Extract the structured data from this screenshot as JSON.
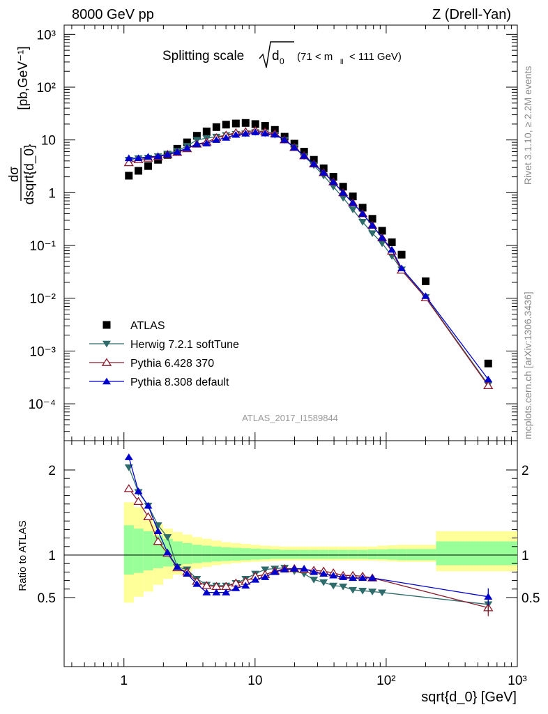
{
  "header": {
    "energy_label": "8000 GeV pp",
    "process_label": "Z (Drell-Yan)",
    "title_main": "Splitting scale",
    "title_sub": "0",
    "title_range": "(71 < m",
    "title_range_sub": "ll",
    "title_range_end": "< 111 GeV)",
    "side_rivet": "Rivet 3.1.10, ≥ 2.2M events",
    "side_mcplots": "mcplots.cern.ch [arXiv:1306.3436]",
    "analysis_id": "ATLAS_2017_I1589844"
  },
  "chart_data": [
    {
      "type": "scatter",
      "panel": "main",
      "ylabel": "dσ/dsqrt{d_0} [pb,GeV⁻¹]",
      "xscale": "log",
      "yscale": "log",
      "xlim": [
        0.35,
        1000
      ],
      "ylim": [
        2e-05,
        1500
      ],
      "x_ticks": [
        "1",
        "10",
        "10²",
        "10³"
      ],
      "y_ticks": [
        "10⁻⁴",
        "10⁻³",
        "10⁻²",
        "10⁻¹",
        "1",
        "10",
        "10²",
        "10³"
      ],
      "legend_position": "lower-left",
      "series": [
        {
          "name": "ATLAS",
          "color": "#000000",
          "marker": "square",
          "x": [
            1.09,
            1.29,
            1.53,
            1.82,
            2.15,
            2.55,
            3.03,
            3.6,
            4.27,
            5.07,
            6.01,
            7.14,
            8.47,
            10.05,
            11.93,
            14.16,
            16.8,
            19.94,
            23.66,
            28.08,
            33.33,
            39.55,
            46.94,
            55.7,
            66.11,
            78.45,
            93.1,
            110.5,
            131.1,
            200,
            600
          ],
          "y": [
            2.1,
            2.6,
            3.2,
            4.2,
            5.2,
            6.8,
            9.0,
            12.0,
            14.5,
            17.5,
            19.5,
            20.5,
            21.0,
            20.0,
            18.5,
            15.5,
            11.5,
            8.5,
            6.0,
            4.2,
            2.9,
            2.0,
            1.3,
            0.85,
            0.52,
            0.32,
            0.19,
            0.115,
            0.067,
            0.021,
            0.00058
          ]
        },
        {
          "name": "Herwig 7.2.1 softTune",
          "color": "#2e6b6b",
          "marker": "triangle-down",
          "x": [
            1.09,
            1.29,
            1.53,
            1.82,
            2.15,
            2.55,
            3.03,
            3.6,
            4.27,
            5.07,
            6.01,
            7.14,
            8.47,
            10.05,
            11.93,
            14.16,
            16.8,
            19.94,
            23.66,
            28.08,
            33.33,
            39.55,
            46.94,
            55.7,
            66.11,
            78.45,
            93.1,
            110.5,
            131.1,
            200,
            600
          ],
          "y": [
            4.2,
            4.5,
            4.6,
            4.9,
            5.5,
            6.2,
            7.7,
            10.0,
            10.8,
            11.5,
            12.3,
            13.0,
            13.3,
            14.0,
            13.3,
            12.5,
            10.0,
            7.2,
            4.9,
            3.3,
            2.1,
            1.3,
            0.8,
            0.48,
            0.28,
            0.17,
            0.11,
            0.063,
            0.035,
            0.0105,
            0.00023
          ]
        },
        {
          "name": "Pythia 6.428 370",
          "color": "#8b1a2b",
          "marker": "triangle-up-open",
          "x": [
            1.09,
            1.29,
            1.53,
            1.82,
            2.15,
            2.55,
            3.03,
            3.6,
            4.27,
            5.07,
            6.01,
            7.14,
            8.47,
            10.05,
            11.93,
            14.16,
            16.8,
            19.94,
            23.66,
            28.08,
            33.33,
            39.55,
            46.94,
            55.7,
            66.11,
            78.45,
            93.1,
            110.5,
            131.1,
            200,
            600
          ],
          "y": [
            3.7,
            4.2,
            4.5,
            4.8,
            5.3,
            5.8,
            6.8,
            8.3,
            9.1,
            11.0,
            12.3,
            13.7,
            14.3,
            15.0,
            14.2,
            13.1,
            10.0,
            7.2,
            5.0,
            3.5,
            2.4,
            1.6,
            1.0,
            0.64,
            0.4,
            0.24,
            0.14,
            0.078,
            0.034,
            0.0102,
            0.00022
          ]
        },
        {
          "name": "Pythia 8.308 default",
          "color": "#0000cc",
          "marker": "triangle-up",
          "x": [
            1.09,
            1.29,
            1.53,
            1.82,
            2.15,
            2.55,
            3.03,
            3.6,
            4.27,
            5.07,
            6.01,
            7.14,
            8.47,
            10.05,
            11.93,
            14.16,
            16.8,
            19.94,
            23.66,
            28.08,
            33.33,
            39.55,
            46.94,
            55.7,
            66.11,
            78.45,
            93.1,
            110.5,
            131.1,
            200,
            600
          ],
          "y": [
            4.5,
            4.5,
            4.8,
            4.9,
            5.3,
            5.9,
            7.0,
            8.3,
            8.6,
            10.0,
            11.0,
            12.5,
            13.2,
            14.0,
            13.3,
            12.6,
            10.0,
            7.2,
            5.0,
            3.5,
            2.4,
            1.6,
            1.0,
            0.64,
            0.4,
            0.24,
            0.14,
            0.083,
            0.037,
            0.011,
            0.00029
          ]
        }
      ]
    },
    {
      "type": "line",
      "panel": "ratio",
      "xlabel": "sqrt{d_0} [GeV]",
      "ylabel": "Ratio to ATLAS",
      "xscale": "log",
      "xlim": [
        0.35,
        1000
      ],
      "ylim": [
        0.42,
        2.25
      ],
      "x_ticks": [
        "1",
        "10",
        "10²",
        "10³"
      ],
      "y_ticks": [
        "0.5",
        "1",
        "2"
      ],
      "reference_line": 1,
      "uncertainty_bands": {
        "edges": [
          1.0,
          1.19,
          1.41,
          1.67,
          1.99,
          2.36,
          2.8,
          3.32,
          3.94,
          4.67,
          5.54,
          6.58,
          7.8,
          9.26,
          10.99,
          13.04,
          15.47,
          18.36,
          21.78,
          25.84,
          30.67,
          36.39,
          43.18,
          51.23,
          60.79,
          72.13,
          85.58,
          101.5,
          120.5,
          143,
          240,
          1000
        ],
        "outer_color": "#ffff99",
        "inner_color": "#99ff99",
        "outer_upper": [
          1.62,
          1.56,
          1.48,
          1.36,
          1.31,
          1.27,
          1.24,
          1.21,
          1.19,
          1.17,
          1.15,
          1.14,
          1.13,
          1.12,
          1.11,
          1.105,
          1.1,
          1.1,
          1.1,
          1.1,
          1.1,
          1.1,
          1.1,
          1.1,
          1.1,
          1.1,
          1.11,
          1.115,
          1.12,
          1.12,
          1.28
        ],
        "outer_lower": [
          0.44,
          0.51,
          0.57,
          0.65,
          0.72,
          0.77,
          0.81,
          0.84,
          0.86,
          0.88,
          0.895,
          0.905,
          0.915,
          0.92,
          0.925,
          0.93,
          0.935,
          0.935,
          0.935,
          0.935,
          0.935,
          0.935,
          0.935,
          0.935,
          0.935,
          0.935,
          0.93,
          0.925,
          0.92,
          0.92,
          0.81
        ],
        "inner_upper": [
          1.35,
          1.31,
          1.28,
          1.23,
          1.19,
          1.16,
          1.14,
          1.12,
          1.11,
          1.1,
          1.09,
          1.085,
          1.08,
          1.075,
          1.07,
          1.065,
          1.06,
          1.06,
          1.06,
          1.06,
          1.06,
          1.06,
          1.06,
          1.06,
          1.06,
          1.065,
          1.065,
          1.07,
          1.07,
          1.07,
          1.16
        ],
        "inner_lower": [
          0.77,
          0.79,
          0.82,
          0.845,
          0.865,
          0.88,
          0.895,
          0.905,
          0.915,
          0.925,
          0.93,
          0.935,
          0.94,
          0.945,
          0.95,
          0.955,
          0.955,
          0.955,
          0.955,
          0.955,
          0.955,
          0.955,
          0.955,
          0.955,
          0.955,
          0.95,
          0.95,
          0.945,
          0.94,
          0.94,
          0.88
        ]
      },
      "series": [
        {
          "name": "Herwig 7.2.1 softTune",
          "color": "#2e6b6b",
          "marker": "triangle-down",
          "x": [
            1.09,
            1.29,
            1.53,
            1.82,
            2.15,
            2.55,
            3.03,
            3.6,
            4.27,
            5.07,
            6.01,
            7.14,
            8.47,
            10.05,
            11.93,
            14.16,
            16.8,
            19.94,
            23.66,
            28.08,
            33.33,
            39.55,
            46.94,
            55.7,
            66.11,
            78.45,
            93.1,
            600
          ],
          "y": [
            2.03,
            1.74,
            1.58,
            1.35,
            1.21,
            0.86,
            0.83,
            0.72,
            0.65,
            0.64,
            0.64,
            0.67,
            0.72,
            0.78,
            0.83,
            0.84,
            0.85,
            0.81,
            0.78,
            0.71,
            0.68,
            0.64,
            0.63,
            0.59,
            0.58,
            0.57,
            0.56,
            0.42
          ]
        },
        {
          "name": "Pythia 6.428 370",
          "color": "#8b1a2b",
          "marker": "triangle-up-open",
          "x": [
            1.09,
            1.29,
            1.53,
            1.82,
            2.15,
            2.55,
            3.03,
            3.6,
            4.27,
            5.07,
            6.01,
            7.14,
            8.47,
            10.05,
            11.93,
            14.16,
            16.8,
            19.94,
            23.66,
            28.08,
            33.33,
            39.55,
            46.94,
            55.7,
            66.11,
            78.45,
            600
          ],
          "y": [
            1.78,
            1.63,
            1.45,
            1.16,
            1.02,
            0.85,
            0.8,
            0.69,
            0.64,
            0.63,
            0.63,
            0.67,
            0.69,
            0.75,
            0.77,
            0.81,
            0.84,
            0.84,
            0.83,
            0.82,
            0.81,
            0.79,
            0.76,
            0.76,
            0.75,
            0.73,
            0.38
          ]
        },
        {
          "name": "Pythia 8.308 default",
          "color": "#0000cc",
          "marker": "triangle-up",
          "x": [
            1.09,
            1.29,
            1.53,
            1.82,
            2.15,
            2.55,
            3.03,
            3.6,
            4.27,
            5.07,
            6.01,
            7.14,
            8.47,
            10.05,
            11.93,
            14.16,
            16.8,
            19.94,
            23.66,
            28.08,
            33.33,
            39.55,
            46.94,
            55.7,
            66.11,
            78.45,
            600
          ],
          "y": [
            2.15,
            1.75,
            1.58,
            1.28,
            1.03,
            0.86,
            0.78,
            0.66,
            0.56,
            0.56,
            0.56,
            0.61,
            0.64,
            0.71,
            0.74,
            0.8,
            0.83,
            0.84,
            0.84,
            0.8,
            0.78,
            0.76,
            0.74,
            0.73,
            0.73,
            0.73,
            0.51
          ]
        }
      ]
    }
  ]
}
